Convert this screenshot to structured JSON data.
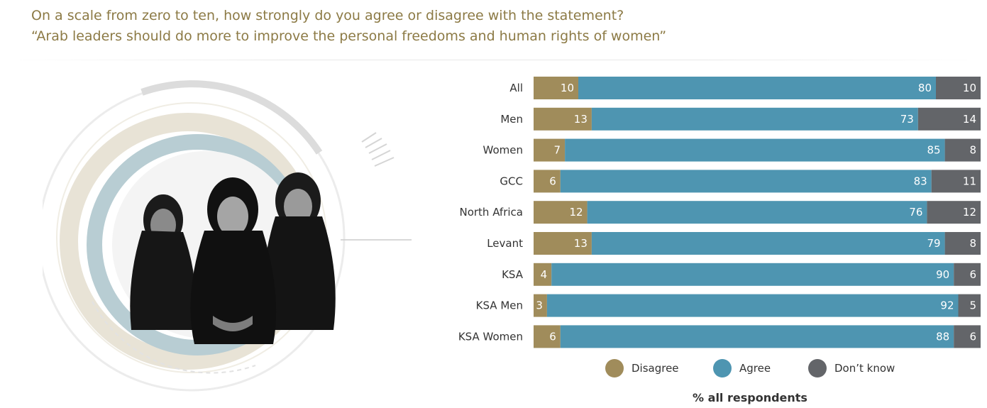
{
  "title": {
    "line1": "On a scale from zero to ten, how strongly do you agree or disagree with the statement?",
    "line2": "“Arab leaders should do more to improve the personal freedoms and human rights of women”"
  },
  "colors": {
    "disagree": "#a08c5b",
    "agree": "#4e95b1",
    "dont_know": "#636569",
    "title": "#8c7a45"
  },
  "chart_data": {
    "type": "bar",
    "orientation": "horizontal",
    "stacked": true,
    "categories": [
      "All",
      "Men",
      "Women",
      "GCC",
      "North Africa",
      "Levant",
      "KSA",
      "KSA Men",
      "KSA Women"
    ],
    "series": [
      {
        "name": "Disagree",
        "values": [
          10,
          13,
          7,
          6,
          12,
          13,
          4,
          3,
          6
        ]
      },
      {
        "name": "Agree",
        "values": [
          80,
          73,
          85,
          83,
          76,
          79,
          90,
          92,
          88
        ]
      },
      {
        "name": "Don’t know",
        "values": [
          10,
          14,
          8,
          11,
          12,
          8,
          6,
          5,
          6
        ]
      }
    ],
    "xlabel": "% all respondents",
    "xlim": [
      0,
      100
    ],
    "legend": "bottom",
    "grid": false
  }
}
